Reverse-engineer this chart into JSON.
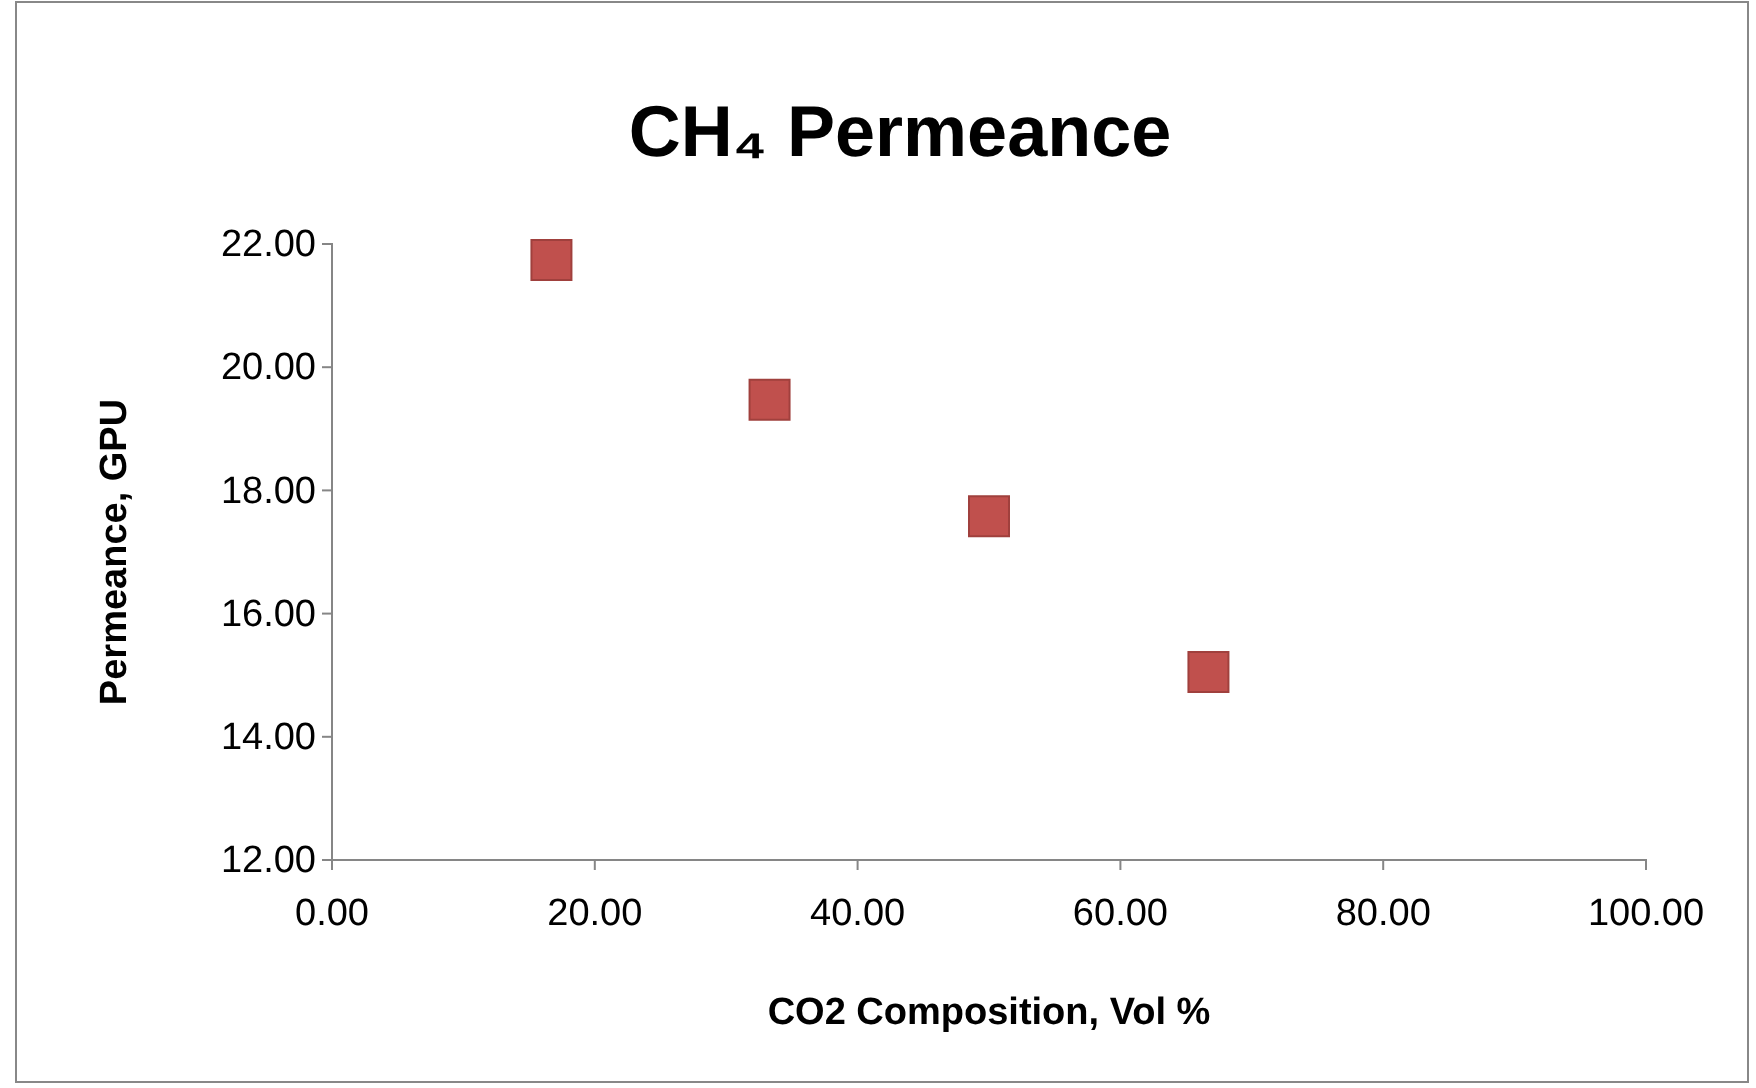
{
  "chart_data": {
    "type": "scatter",
    "title": "CH₄ Permeance",
    "xlabel": "CO2 Composition, Vol %",
    "ylabel": "Permeance, GPU",
    "x": [
      16.7,
      33.3,
      50.0,
      66.7
    ],
    "series": [
      {
        "color": "#c0504d",
        "values": [
          21.74,
          19.47,
          17.58,
          15.05
        ]
      }
    ],
    "marker": "square",
    "grid": false,
    "legend": false,
    "xlim": [
      0,
      100
    ],
    "xticks": [
      {
        "value": 0,
        "label": "0.00"
      },
      {
        "value": 20,
        "label": "20.00"
      },
      {
        "value": 40,
        "label": "40.00"
      },
      {
        "value": 60,
        "label": "60.00"
      },
      {
        "value": 80,
        "label": "80.00"
      },
      {
        "value": 100,
        "label": "100.00"
      }
    ],
    "ylim": [
      12,
      22
    ],
    "yticks": [
      {
        "value": 12,
        "label": "12.00"
      },
      {
        "value": 14,
        "label": "14.00"
      },
      {
        "value": 16,
        "label": "16.00"
      },
      {
        "value": 18,
        "label": "18.00"
      },
      {
        "value": 20,
        "label": "20.00"
      },
      {
        "value": 22,
        "label": "22.00"
      }
    ]
  }
}
